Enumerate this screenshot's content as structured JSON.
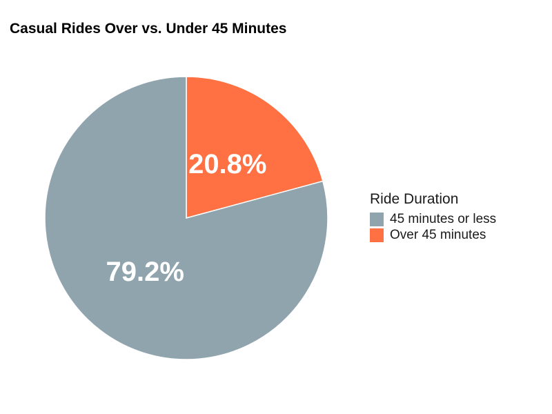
{
  "chart_data": {
    "type": "pie",
    "title": "Casual Rides Over vs. Under 45 Minutes",
    "legend_title": "Ride Duration",
    "legend_position": "right",
    "start_angle_deg": 0,
    "direction": "clockwise",
    "slices": [
      {
        "label": "Over 45 minutes",
        "value": 20.8,
        "display": "20.8%",
        "color": "#FF7043"
      },
      {
        "label": "45 minutes or less",
        "value": 79.2,
        "display": "79.2%",
        "color": "#90A4AE"
      }
    ],
    "legend_entries": [
      {
        "label": "45 minutes or less",
        "color": "#90A4AE"
      },
      {
        "label": "Over 45 minutes",
        "color": "#FF7043"
      }
    ]
  }
}
